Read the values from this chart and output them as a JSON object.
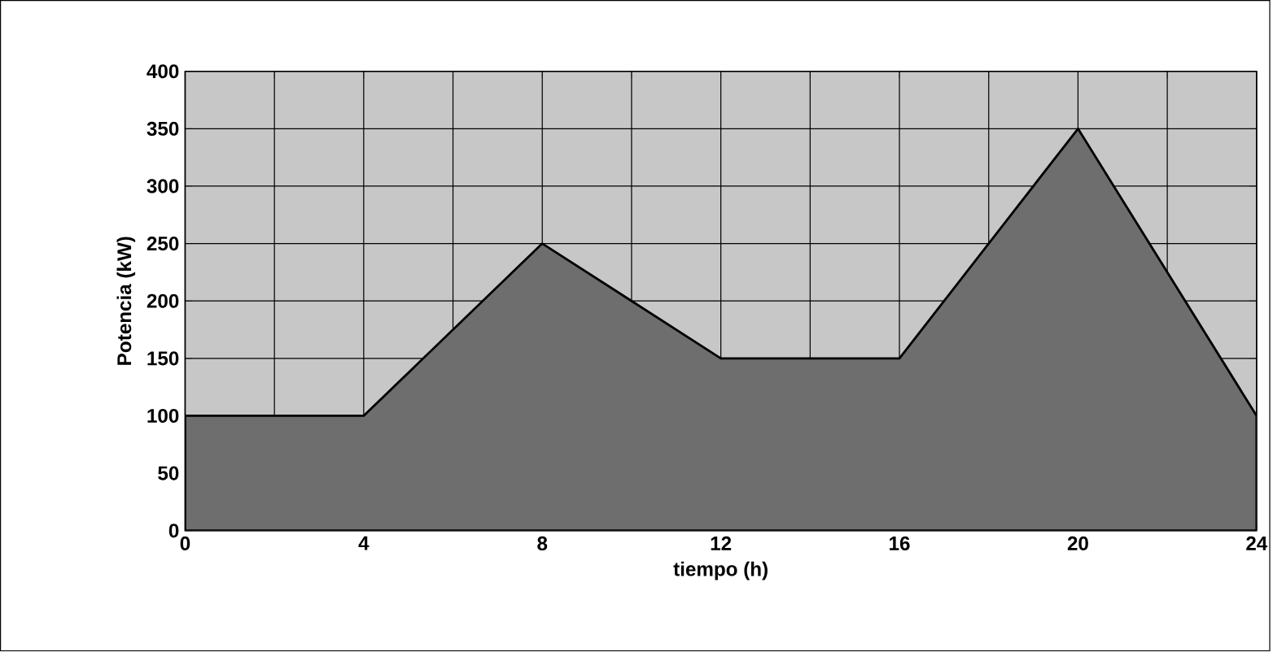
{
  "chart_data": {
    "type": "area",
    "xlabel": "tiempo (h)",
    "ylabel": "Potencia (kW)",
    "x": [
      0,
      4,
      8,
      12,
      16,
      20,
      24
    ],
    "values": [
      100,
      100,
      250,
      150,
      150,
      350,
      100
    ],
    "color": "#6e6e6e",
    "xlim": [
      0,
      24
    ],
    "xticks": [
      0,
      {
        "value": 2,
        "label": null
      },
      4,
      {
        "value": 6,
        "label": null
      },
      8,
      {
        "value": 10,
        "label": null
      },
      12,
      {
        "value": 14,
        "label": null
      },
      16,
      {
        "value": 18,
        "label": null
      },
      20,
      {
        "value": 22,
        "label": null
      },
      24
    ],
    "ylim": [
      0,
      400
    ],
    "yticks": [
      0,
      50,
      100,
      150,
      200,
      250,
      300,
      350,
      400
    ],
    "grid": true
  }
}
